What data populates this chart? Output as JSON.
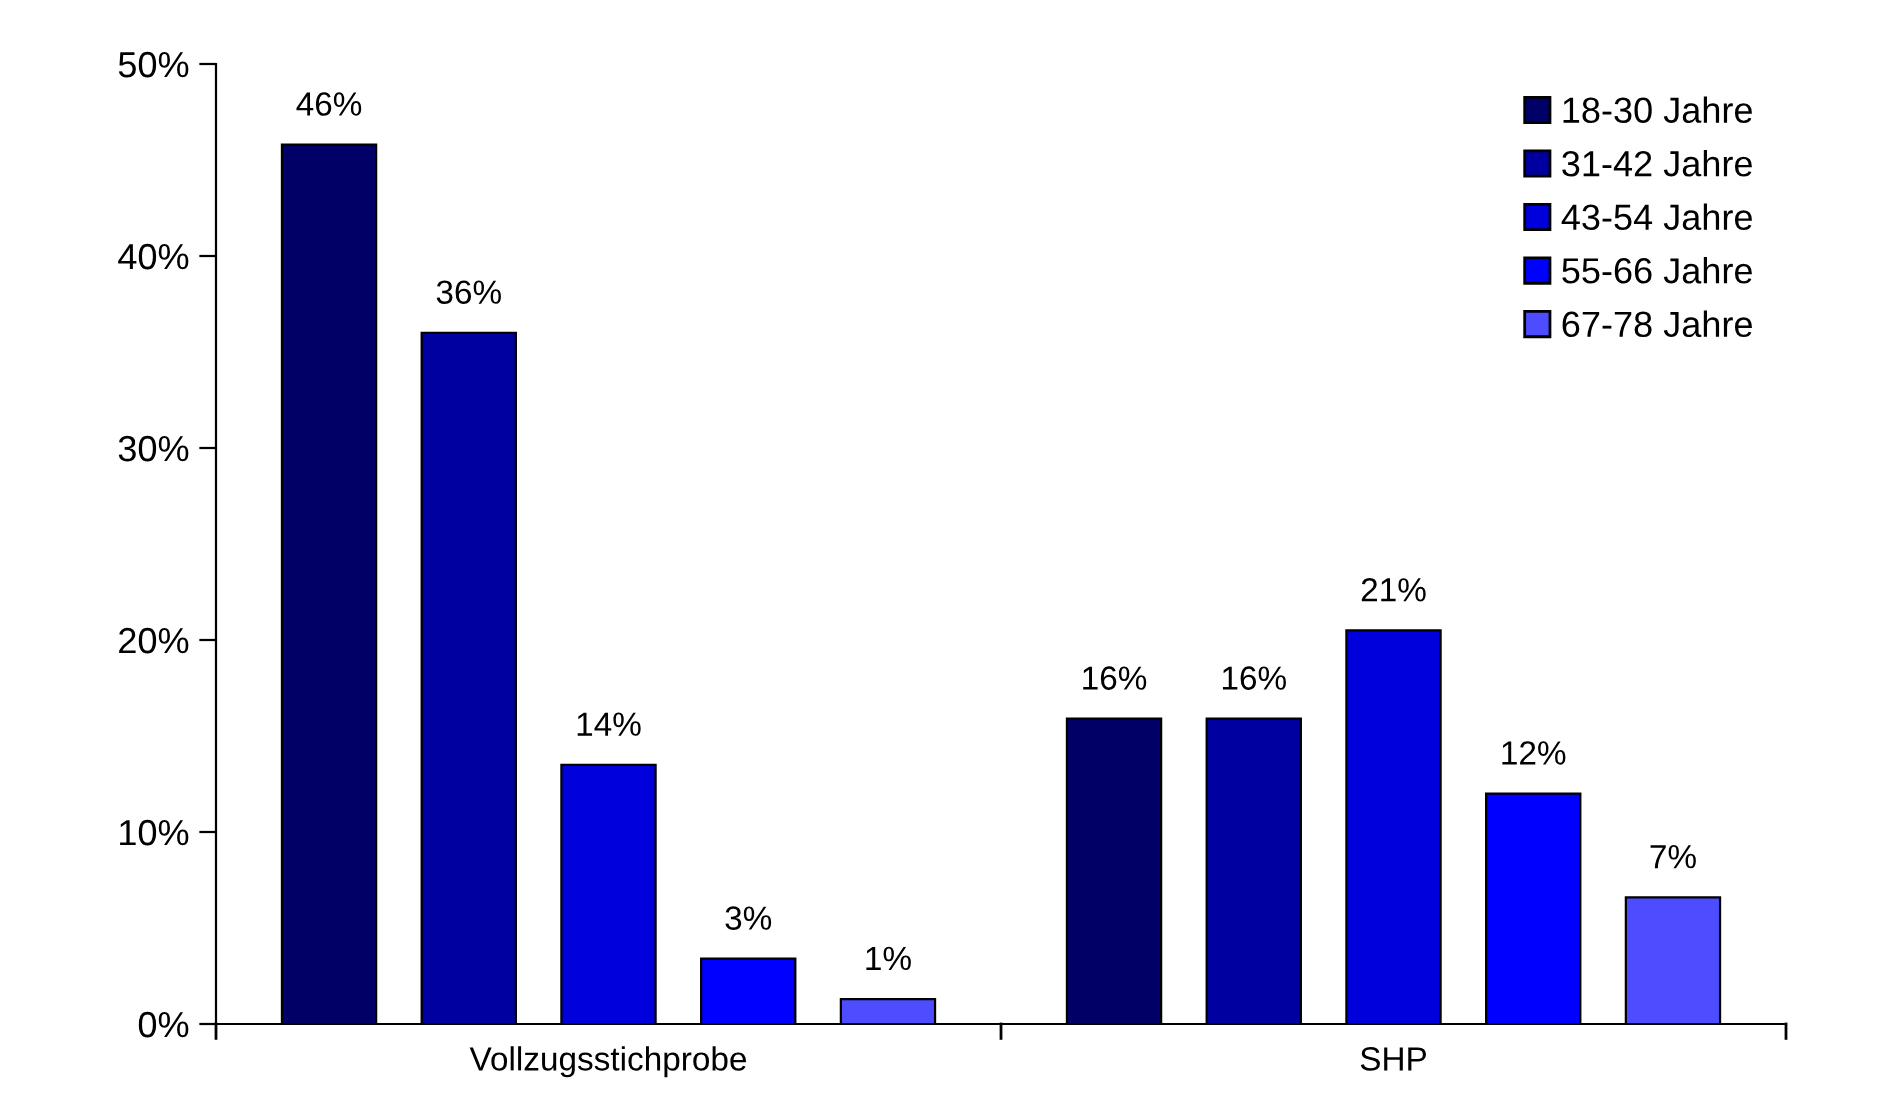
{
  "chart_data": {
    "type": "bar",
    "categories": [
      "Vollzugsstichprobe",
      "SHP"
    ],
    "series": [
      {
        "name": "18-30 Jahre",
        "color": "#000066",
        "values": [
          45.8,
          15.9
        ],
        "value_labels": [
          "46%",
          "16%"
        ]
      },
      {
        "name": "31-42 Jahre",
        "color": "#0000a0",
        "values": [
          36,
          15.9
        ],
        "value_labels": [
          "36%",
          "16%"
        ]
      },
      {
        "name": "43-54 Jahre",
        "color": "#0000dd",
        "values": [
          13.5,
          20.5
        ],
        "value_labels": [
          "14%",
          "21%"
        ]
      },
      {
        "name": "55-66 Jahre",
        "color": "#0000ff",
        "values": [
          3.4,
          12
        ],
        "value_labels": [
          "3%",
          "12%"
        ]
      },
      {
        "name": "67-78 Jahre",
        "color": "#4d4dff",
        "values": [
          1.3,
          6.6
        ],
        "value_labels": [
          "1%",
          "7%"
        ]
      }
    ],
    "ylim": [
      0,
      50
    ],
    "yticks": [
      {
        "value": 0,
        "label": "0%"
      },
      {
        "value": 10,
        "label": "10%"
      },
      {
        "value": 20,
        "label": "20%"
      },
      {
        "value": 30,
        "label": "30%"
      },
      {
        "value": 40,
        "label": "40%"
      },
      {
        "value": 50,
        "label": "50%"
      }
    ],
    "grid": false,
    "legend": "top right"
  }
}
